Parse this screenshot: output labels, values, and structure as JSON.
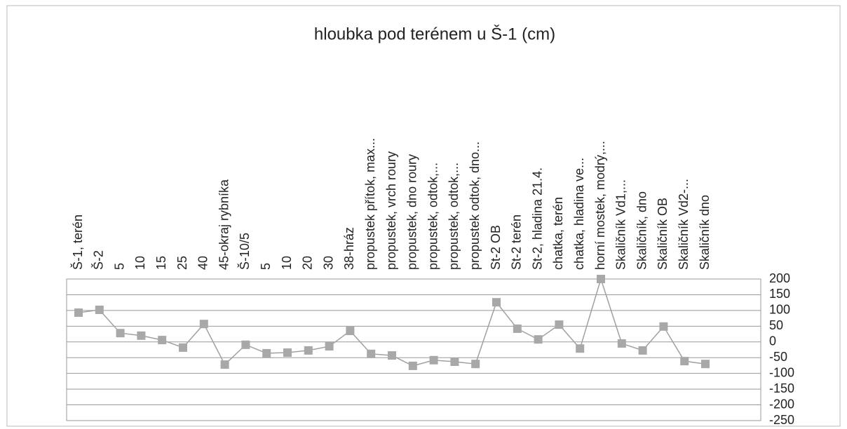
{
  "chart_data": {
    "type": "line",
    "title": "hloubka pod terénem u Š-1 (cm)",
    "categories": [
      "Š-1, terén",
      "Š-2",
      "5",
      "10",
      "15",
      "25",
      "40",
      "45-okraj rybníka",
      "Š-10/5",
      "5",
      "10",
      "20",
      "30",
      "38-hráz",
      "propustek přítok, max...",
      "propustek, vrch roury",
      "propustek, dno roury",
      "propustek, odtok,...",
      "propustek, odtok,...",
      "propustek odtok, dno...",
      "St-2 OB",
      "St-2 terén",
      "St-2, hladina 21.4.",
      "chatka, terén",
      "chatka, hladina ve...",
      "horní mostek, modrý,...",
      "Skaličník Vd1,...",
      "Skaličník, dno",
      "Skaličník OB",
      "Skaličník Vd2-...",
      "Skaličník dno"
    ],
    "series": [
      {
        "name": "hloubka",
        "color": "#a0a0a0",
        "marker_color": "#a8a8a8",
        "values": [
          93,
          102,
          28,
          20,
          6,
          -18,
          57,
          -72,
          -9,
          -36,
          -34,
          -27,
          -14,
          35,
          -38,
          -43,
          -76,
          -58,
          -63,
          -70,
          126,
          42,
          8,
          55,
          -21,
          200,
          -5,
          -27,
          49,
          -61,
          -70
        ]
      }
    ],
    "ylim": [
      -250,
      200
    ],
    "yticks": [
      200,
      150,
      100,
      50,
      0,
      -50,
      -100,
      -150,
      -200,
      -250
    ],
    "grid": true
  }
}
